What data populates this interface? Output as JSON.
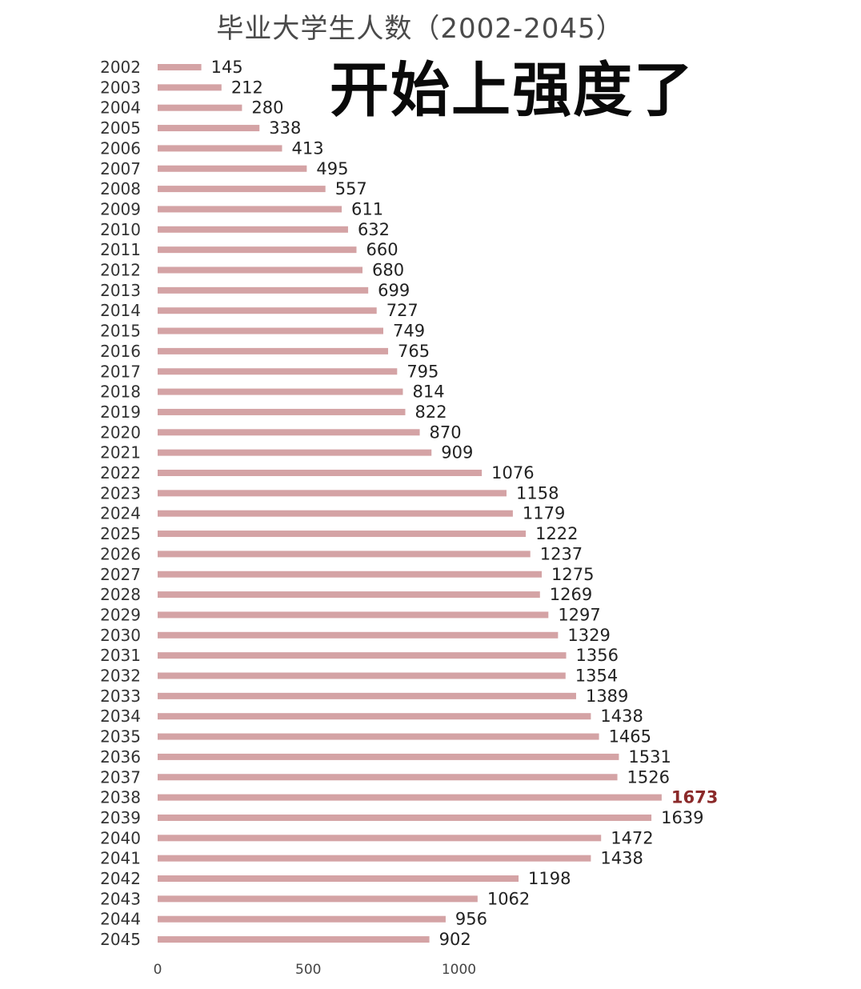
{
  "headline": "开始上强度了",
  "chart_data": {
    "type": "bar",
    "orientation": "horizontal",
    "title": "毕业大学生人数（2002-2045）",
    "xlabel": "",
    "ylabel": "",
    "xlim": [
      0,
      1700
    ],
    "xticks": [
      0,
      500,
      1000
    ],
    "grid": false,
    "legend": "none",
    "bar_color": "#d4a3a5",
    "highlight_color": "#8b2a2a",
    "highlight_category": "2038",
    "categories": [
      "2002",
      "2003",
      "2004",
      "2005",
      "2006",
      "2007",
      "2008",
      "2009",
      "2010",
      "2011",
      "2012",
      "2013",
      "2014",
      "2015",
      "2016",
      "2017",
      "2018",
      "2019",
      "2020",
      "2021",
      "2022",
      "2023",
      "2024",
      "2025",
      "2026",
      "2027",
      "2028",
      "2029",
      "2030",
      "2031",
      "2032",
      "2033",
      "2034",
      "2035",
      "2036",
      "2037",
      "2038",
      "2039",
      "2040",
      "2041",
      "2042",
      "2043",
      "2044",
      "2045"
    ],
    "values": [
      145,
      212,
      280,
      338,
      413,
      495,
      557,
      611,
      632,
      660,
      680,
      699,
      727,
      749,
      765,
      795,
      814,
      822,
      870,
      909,
      1076,
      1158,
      1179,
      1222,
      1237,
      1275,
      1269,
      1297,
      1329,
      1356,
      1354,
      1389,
      1438,
      1465,
      1531,
      1526,
      1673,
      1639,
      1472,
      1438,
      1198,
      1062,
      956,
      902
    ]
  }
}
